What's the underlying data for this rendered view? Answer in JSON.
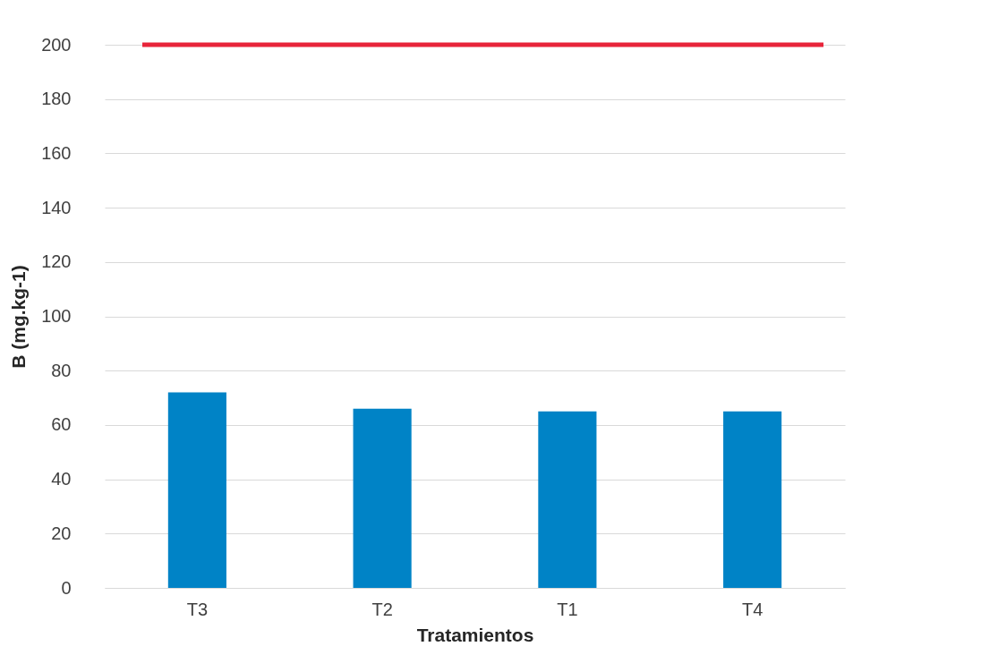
{
  "chart_data": {
    "type": "bar",
    "xlabel": "Tratamientos",
    "ylabel": "B (mg.kg-1)",
    "categories": [
      "T3",
      "T2",
      "T1",
      "T4"
    ],
    "series": [
      {
        "color": "#0083c6",
        "values": [
          72,
          66,
          65,
          65
        ]
      }
    ],
    "ylim": [
      0,
      200
    ],
    "yticks": [
      0,
      20,
      40,
      60,
      80,
      100,
      120,
      140,
      160,
      180,
      200
    ],
    "grid": "y",
    "ref_lines": [
      {
        "axis": "y",
        "value": 200,
        "color": "#e8243a"
      }
    ]
  }
}
